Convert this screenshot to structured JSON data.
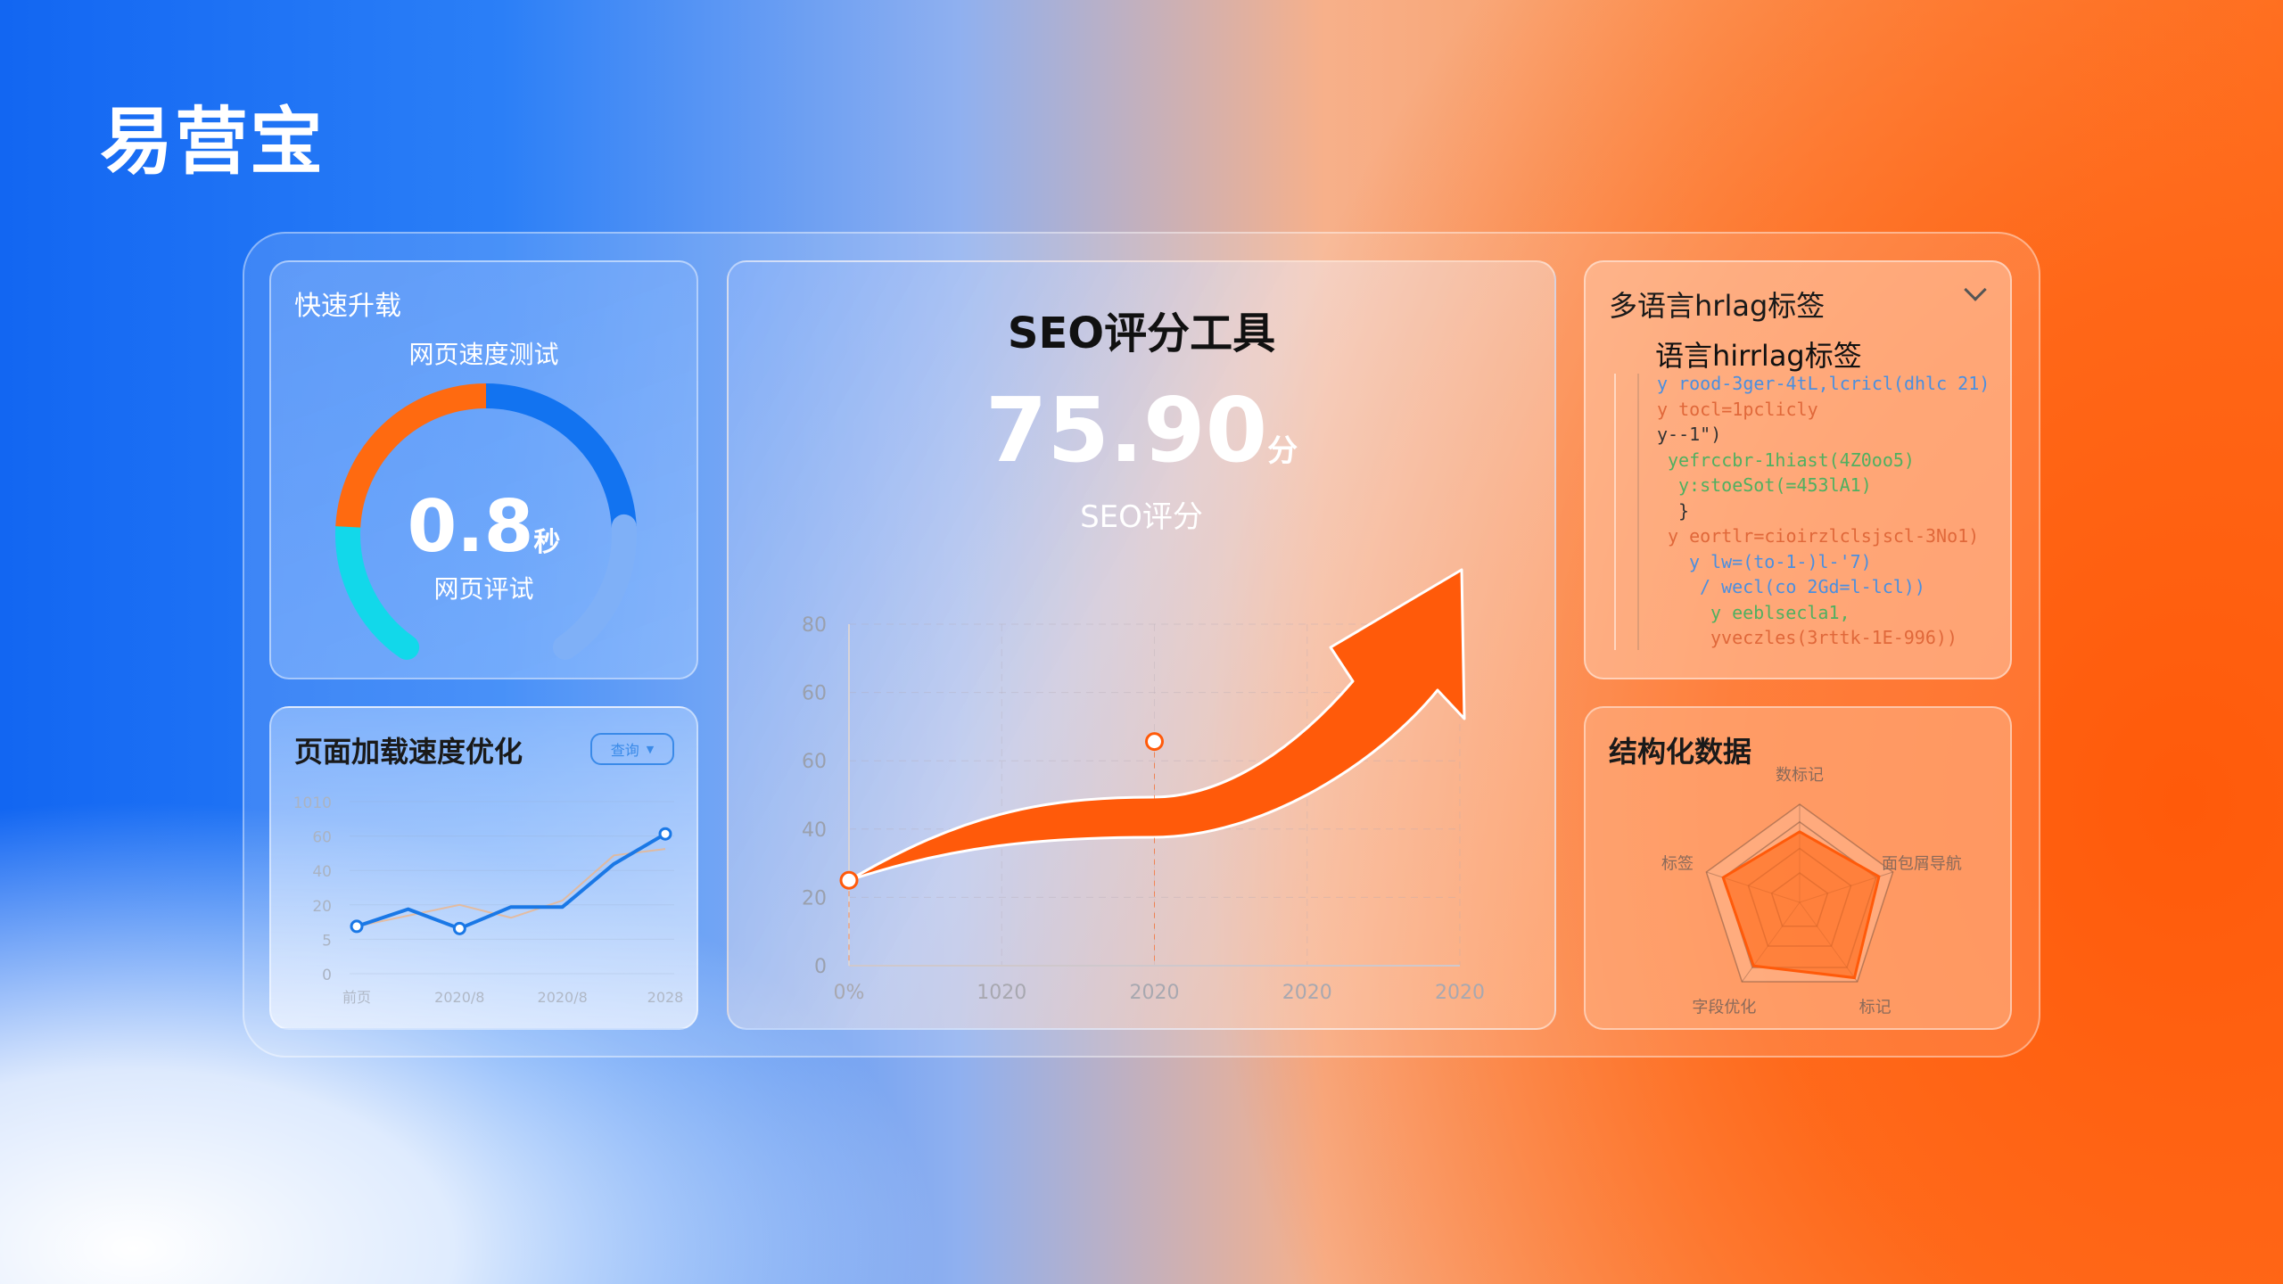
{
  "brand": {
    "logo": "易营宝"
  },
  "speed_card": {
    "title": "快速升载",
    "subtitle": "网页速度测试",
    "value": "0.8",
    "unit": "秒",
    "label": "网页评试",
    "gauge": {
      "segments": [
        {
          "color": "#12d8ea",
          "fraction": 0.2
        },
        {
          "color": "#ff6a10",
          "fraction": 0.3
        },
        {
          "color": "#1273f0",
          "fraction": 0.3
        },
        {
          "color": "#7fb0f7",
          "fraction": 0.2
        }
      ]
    }
  },
  "load_card": {
    "title": "页面加载速度优化",
    "dropdown": "查询",
    "dropdown_icon": "caret-down-icon",
    "chart_data": {
      "type": "line",
      "y_ticks": [
        "1010",
        "60",
        "40",
        "20",
        "5",
        "0"
      ],
      "x_ticks": [
        "前页",
        "2020/8",
        "2020/8",
        "2028"
      ],
      "series": [
        {
          "color": "#1a78e6",
          "values": [
            22,
            30,
            21,
            31,
            31,
            51,
            65
          ]
        },
        {
          "color": "#f5b27a",
          "values": [
            22,
            27,
            32,
            26,
            34,
            55,
            58
          ]
        }
      ]
    }
  },
  "seo_card": {
    "title": "SEO评分工具",
    "score": "75.90",
    "score_unit": "分",
    "score_label": "SEO评分",
    "chart_data": {
      "type": "area",
      "y_ticks": [
        "80",
        "60",
        "60",
        "40",
        "20",
        "0"
      ],
      "x_ticks": [
        "0%",
        "1020",
        "2020",
        "2020",
        "2020"
      ],
      "points": [
        {
          "x": 0,
          "y": 20
        },
        {
          "x": 2,
          "y": 50
        }
      ],
      "trend": "up",
      "color": "#ff5a0a"
    }
  },
  "hreflang_card": {
    "title": "多语言hrlag标签",
    "toggle_icon": "chevron-down-icon",
    "subtitle": "语言hirrlag标签",
    "code_lines": [
      {
        "text": "y rood-3ger-4tL,lcricl(dhlc 21)",
        "color": "#4a8fe0",
        "indent": 0
      },
      {
        "text": "y tocl=1pclicly",
        "color": "#e0683a",
        "indent": 0
      },
      {
        "text": "y--1\")",
        "color": "#333333",
        "indent": 0
      },
      {
        "text": "yefrccbr-1hiast(4Z0oo5)",
        "color": "#4fb060",
        "indent": 1
      },
      {
        "text": "y:stoeSot(=453lA1)",
        "color": "#4fb060",
        "indent": 2
      },
      {
        "text": "}",
        "color": "#333333",
        "indent": 2
      },
      {
        "text": "y eortlr=cioirzlclsjscl-3No1)",
        "color": "#e0683a",
        "indent": 1
      },
      {
        "text": "y lw=(to-1-)l-'7)",
        "color": "#4a8fe0",
        "indent": 3
      },
      {
        "text": "/ wecl(co 2Gd=l-lcl))",
        "color": "#4a8fe0",
        "indent": 4
      },
      {
        "text": "y eeblsecla1,",
        "color": "#4fb060",
        "indent": 5
      },
      {
        "text": "yveczles(3rttk-1E-996))",
        "color": "#e0683a",
        "indent": 5
      }
    ]
  },
  "structured_card": {
    "title": "结构化数据",
    "chart_data": {
      "type": "radar",
      "axes": [
        "数标记",
        "面包屑导航",
        "标记",
        "字段优化",
        "标签"
      ],
      "values": [
        0.72,
        0.85,
        0.95,
        0.8,
        0.82
      ],
      "color": "#ff6a1a"
    }
  }
}
